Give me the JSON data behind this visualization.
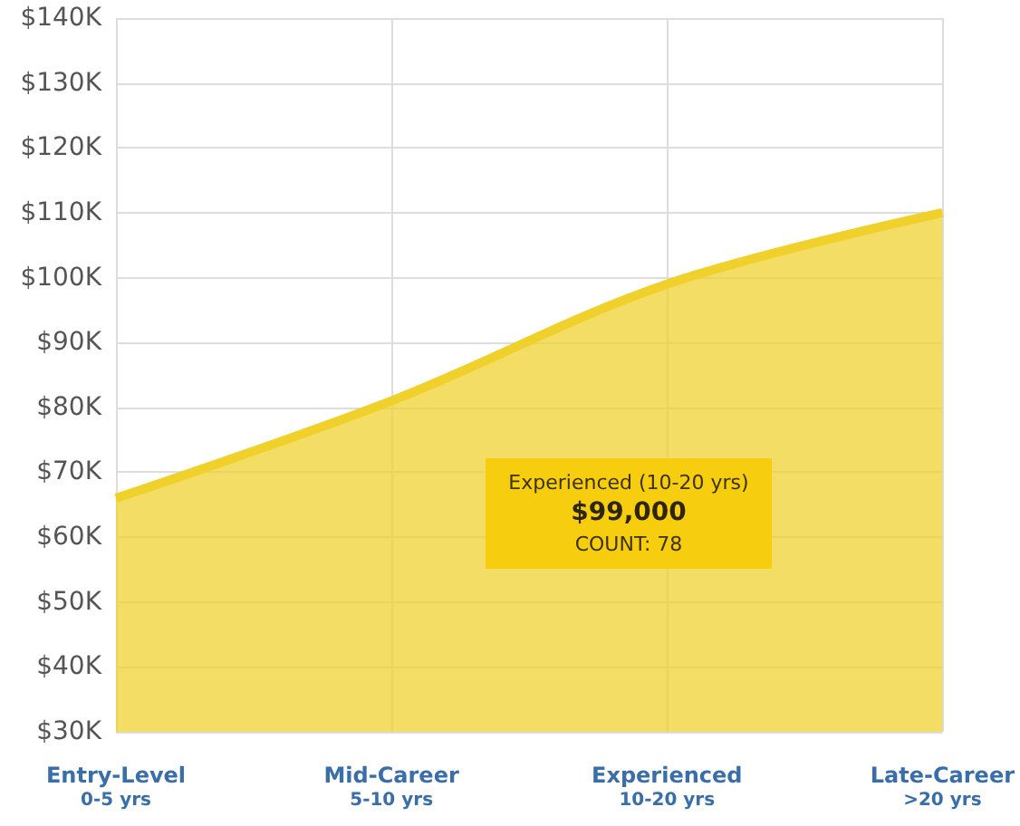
{
  "chart_data": {
    "type": "area",
    "categories": [
      "Entry-Level\n0-5 yrs",
      "Mid-Career\n5-10 yrs",
      "Experienced\n10-20 yrs",
      "Late-Career\n>20 yrs"
    ],
    "series": [
      {
        "color": "#f0d02a",
        "values": [
          66000,
          81000,
          99000,
          110000
        ]
      }
    ],
    "ylim": [
      30000,
      140000
    ],
    "yticks": [
      {
        "value": 30000,
        "label": "$30K"
      },
      {
        "value": 40000,
        "label": "$40K"
      },
      {
        "value": 50000,
        "label": "$50K"
      },
      {
        "value": 60000,
        "label": "$60K"
      },
      {
        "value": 70000,
        "label": "$70K"
      },
      {
        "value": 80000,
        "label": "$80K"
      },
      {
        "value": 90000,
        "label": "$90K"
      },
      {
        "value": 100000,
        "label": "$100K"
      },
      {
        "value": 110000,
        "label": "$110K"
      },
      {
        "value": 120000,
        "label": "$120K"
      },
      {
        "value": 130000,
        "label": "$130K"
      },
      {
        "value": 140000,
        "label": "$140K"
      }
    ],
    "grid": true,
    "annotations": [
      "Experienced (10-20 yrs)",
      "$99,000",
      "COUNT: 78"
    ]
  }
}
